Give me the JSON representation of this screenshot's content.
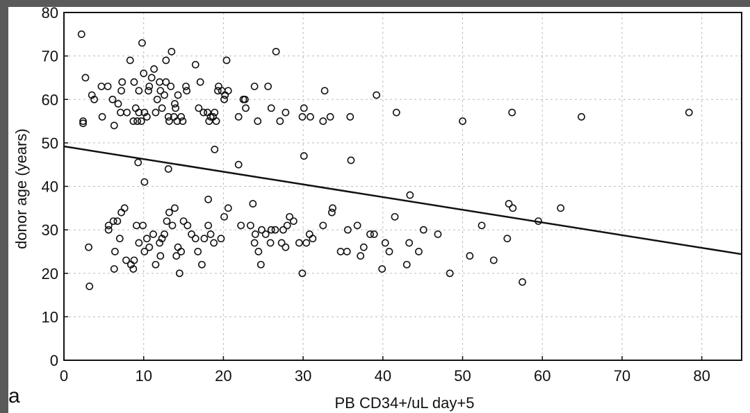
{
  "chart_data": {
    "type": "scatter",
    "panel_label": "a",
    "xlabel": "PB CD34+/uL day+5",
    "ylabel": "donor age (years)",
    "xlim": [
      0,
      85
    ],
    "ylim": [
      0,
      80
    ],
    "x_ticks": [
      0,
      10,
      20,
      30,
      40,
      50,
      60,
      70,
      80
    ],
    "y_ticks": [
      0,
      10,
      20,
      30,
      40,
      50,
      60,
      70,
      80
    ],
    "grid": true,
    "colors": {
      "axis": "#111111",
      "grid": "#bbbbbb",
      "marker": "#111111",
      "fit_line": "#111111"
    },
    "regression_line": {
      "x": [
        0,
        85
      ],
      "y": [
        49.2,
        24.4
      ]
    },
    "points": [
      [
        2.2,
        75
      ],
      [
        2.7,
        65
      ],
      [
        2.4,
        55
      ],
      [
        2.4,
        54.5
      ],
      [
        3.5,
        61
      ],
      [
        3.8,
        60
      ],
      [
        4.7,
        63
      ],
      [
        4.8,
        56
      ],
      [
        5.5,
        63
      ],
      [
        6.1,
        60
      ],
      [
        6.3,
        54
      ],
      [
        6.8,
        59
      ],
      [
        7.1,
        57
      ],
      [
        7.2,
        62
      ],
      [
        7.3,
        64
      ],
      [
        7.9,
        57
      ],
      [
        8.3,
        69
      ],
      [
        8.7,
        55
      ],
      [
        8.8,
        64
      ],
      [
        9,
        58
      ],
      [
        9.2,
        55
      ],
      [
        9.4,
        62
      ],
      [
        9.4,
        57
      ],
      [
        9.7,
        55
      ],
      [
        9.8,
        73
      ],
      [
        10,
        66
      ],
      [
        10.1,
        57
      ],
      [
        10.4,
        56
      ],
      [
        10.6,
        62
      ],
      [
        10.7,
        63
      ],
      [
        11,
        65
      ],
      [
        11.3,
        67
      ],
      [
        11.5,
        57
      ],
      [
        11.7,
        60
      ],
      [
        12,
        64
      ],
      [
        12.1,
        62
      ],
      [
        12.3,
        58
      ],
      [
        12.6,
        61
      ],
      [
        12.8,
        64
      ],
      [
        12.8,
        69
      ],
      [
        13.1,
        56
      ],
      [
        13.2,
        55
      ],
      [
        13.4,
        63
      ],
      [
        13.5,
        71
      ],
      [
        13.8,
        56
      ],
      [
        13.9,
        59
      ],
      [
        14,
        58
      ],
      [
        14.2,
        55
      ],
      [
        14.3,
        61
      ],
      [
        14.7,
        56
      ],
      [
        14.9,
        55
      ],
      [
        15.3,
        63
      ],
      [
        15.4,
        62
      ],
      [
        16.5,
        68
      ],
      [
        16.9,
        58
      ],
      [
        17.1,
        64
      ],
      [
        17.5,
        57
      ],
      [
        18,
        57
      ],
      [
        18.2,
        55
      ],
      [
        18.4,
        56
      ],
      [
        18.7,
        56
      ],
      [
        18.9,
        57
      ],
      [
        19.1,
        55
      ],
      [
        19.3,
        62
      ],
      [
        19.4,
        63
      ],
      [
        19.8,
        62
      ],
      [
        20.1,
        60
      ],
      [
        20.2,
        61
      ],
      [
        20.4,
        69
      ],
      [
        20.6,
        62
      ],
      [
        21.9,
        56
      ],
      [
        22.5,
        60
      ],
      [
        22.7,
        60
      ],
      [
        22.8,
        58
      ],
      [
        23.9,
        63
      ],
      [
        24.3,
        55
      ],
      [
        25.6,
        63
      ],
      [
        26,
        58
      ],
      [
        26.6,
        71
      ],
      [
        27.1,
        55
      ],
      [
        27.8,
        57
      ],
      [
        29.9,
        56
      ],
      [
        30.1,
        58
      ],
      [
        30.9,
        56
      ],
      [
        32.5,
        55
      ],
      [
        32.7,
        62
      ],
      [
        33.4,
        56
      ],
      [
        35.9,
        56
      ],
      [
        39.2,
        61
      ],
      [
        41.7,
        57
      ],
      [
        50,
        55
      ],
      [
        56.2,
        57
      ],
      [
        64.9,
        56
      ],
      [
        78.4,
        57
      ],
      [
        9.3,
        45.5
      ],
      [
        10.1,
        41
      ],
      [
        13.1,
        44
      ],
      [
        18.9,
        48.5
      ],
      [
        21.9,
        45
      ],
      [
        30.1,
        47
      ],
      [
        36,
        46
      ],
      [
        43.4,
        38
      ],
      [
        3.1,
        26
      ],
      [
        3.2,
        17
      ],
      [
        5.6,
        31
      ],
      [
        5.6,
        30
      ],
      [
        6.2,
        32
      ],
      [
        6.3,
        21
      ],
      [
        6.4,
        25
      ],
      [
        6.7,
        32
      ],
      [
        7,
        28
      ],
      [
        7.2,
        34
      ],
      [
        7.6,
        35
      ],
      [
        7.8,
        23
      ],
      [
        8.4,
        22
      ],
      [
        8.7,
        21
      ],
      [
        8.8,
        23
      ],
      [
        9.1,
        31
      ],
      [
        9.4,
        27
      ],
      [
        9.9,
        31
      ],
      [
        10.1,
        25
      ],
      [
        10.4,
        28
      ],
      [
        10.7,
        26
      ],
      [
        11.2,
        29
      ],
      [
        11.5,
        22
      ],
      [
        12,
        27
      ],
      [
        12.1,
        24
      ],
      [
        12.3,
        28
      ],
      [
        12.6,
        29
      ],
      [
        12.9,
        32
      ],
      [
        13.2,
        34
      ],
      [
        13.6,
        31
      ],
      [
        13.9,
        35
      ],
      [
        14.1,
        24
      ],
      [
        14.3,
        26
      ],
      [
        14.5,
        20
      ],
      [
        14.7,
        25
      ],
      [
        15,
        32
      ],
      [
        15.5,
        31
      ],
      [
        16,
        29
      ],
      [
        16.5,
        28
      ],
      [
        16.8,
        25
      ],
      [
        17.3,
        22
      ],
      [
        17.6,
        28
      ],
      [
        18.1,
        31
      ],
      [
        18.1,
        37
      ],
      [
        18.4,
        29
      ],
      [
        18.8,
        27
      ],
      [
        19.7,
        28
      ],
      [
        20.1,
        33
      ],
      [
        20.6,
        35
      ],
      [
        22.2,
        31
      ],
      [
        23.4,
        31
      ],
      [
        23.7,
        36
      ],
      [
        23.9,
        27
      ],
      [
        24,
        29
      ],
      [
        24.4,
        25
      ],
      [
        24.7,
        22
      ],
      [
        24.8,
        30
      ],
      [
        25.3,
        29
      ],
      [
        25.9,
        27
      ],
      [
        26,
        30
      ],
      [
        26.5,
        30
      ],
      [
        27.3,
        27
      ],
      [
        27.5,
        30
      ],
      [
        27.8,
        26
      ],
      [
        28,
        31
      ],
      [
        28.3,
        33
      ],
      [
        28.8,
        32
      ],
      [
        29.5,
        27
      ],
      [
        29.9,
        20
      ],
      [
        30.4,
        27
      ],
      [
        30.8,
        29
      ],
      [
        31.2,
        28
      ],
      [
        32.5,
        31
      ],
      [
        33.6,
        34
      ],
      [
        33.7,
        35
      ],
      [
        34.7,
        25
      ],
      [
        35.5,
        25
      ],
      [
        35.6,
        30
      ],
      [
        36.8,
        31
      ],
      [
        37.2,
        24
      ],
      [
        37.6,
        26
      ],
      [
        38.4,
        29
      ],
      [
        38.9,
        29
      ],
      [
        39.9,
        21
      ],
      [
        40.3,
        27
      ],
      [
        40.8,
        25
      ],
      [
        41.5,
        33
      ],
      [
        43,
        22
      ],
      [
        43.3,
        27
      ],
      [
        44.5,
        25
      ],
      [
        45.1,
        30
      ],
      [
        46.9,
        29
      ],
      [
        48.4,
        20
      ],
      [
        50.9,
        24
      ],
      [
        52.4,
        31
      ],
      [
        53.9,
        23
      ],
      [
        55.6,
        28
      ],
      [
        55.8,
        36
      ],
      [
        56.3,
        35
      ],
      [
        57.5,
        18
      ],
      [
        59.5,
        32
      ],
      [
        62.3,
        35
      ]
    ]
  }
}
